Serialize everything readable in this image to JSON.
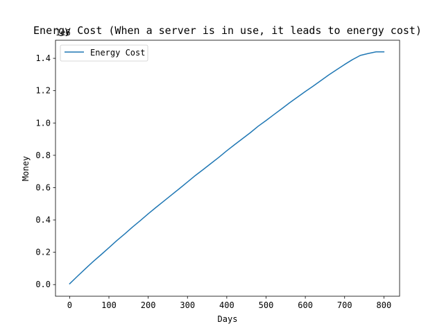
{
  "chart_data": {
    "type": "line",
    "title": "Energy Cost (When a server is in use, it leads to energy cost)",
    "xlabel": "Days",
    "ylabel": "Money",
    "y_offset_label": "1e6",
    "xlim": [
      -36,
      840
    ],
    "ylim": [
      -0.072,
      1.512
    ],
    "xticks": [
      0,
      100,
      200,
      300,
      400,
      500,
      600,
      700,
      800
    ],
    "yticks": [
      0.0,
      0.2,
      0.4,
      0.6,
      0.8,
      1.0,
      1.2,
      1.4
    ],
    "xtick_labels": [
      "0",
      "100",
      "200",
      "300",
      "400",
      "500",
      "600",
      "700",
      "800"
    ],
    "ytick_labels": [
      "0.0",
      "0.2",
      "0.4",
      "0.6",
      "0.8",
      "1.0",
      "1.2",
      "1.4"
    ],
    "grid": false,
    "legend_position": "upper-left",
    "series": [
      {
        "name": "Energy Cost",
        "color": "#1f77b4",
        "x": [
          0,
          20,
          40,
          60,
          80,
          100,
          120,
          140,
          160,
          180,
          200,
          220,
          240,
          260,
          280,
          300,
          320,
          340,
          360,
          380,
          400,
          420,
          440,
          460,
          480,
          500,
          520,
          540,
          560,
          580,
          600,
          620,
          640,
          660,
          680,
          700,
          720,
          740,
          760,
          780,
          790,
          800
        ],
        "y": [
          0.005,
          0.052,
          0.098,
          0.143,
          0.185,
          0.228,
          0.272,
          0.313,
          0.356,
          0.396,
          0.438,
          0.478,
          0.517,
          0.556,
          0.595,
          0.635,
          0.675,
          0.712,
          0.75,
          0.788,
          0.828,
          0.866,
          0.903,
          0.94,
          0.98,
          1.015,
          1.052,
          1.088,
          1.125,
          1.16,
          1.195,
          1.228,
          1.263,
          1.298,
          1.33,
          1.362,
          1.392,
          1.418,
          1.43,
          1.44,
          1.44,
          1.44
        ]
      }
    ]
  }
}
